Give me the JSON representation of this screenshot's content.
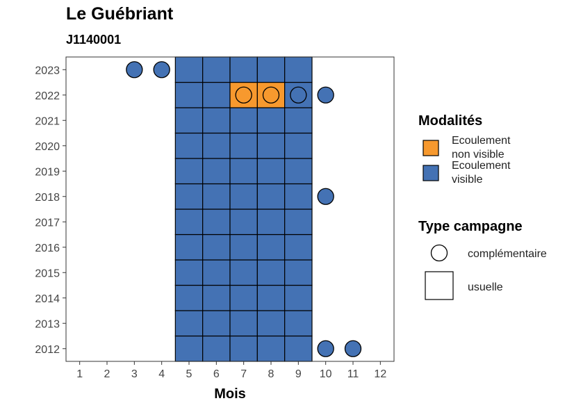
{
  "chart_data": {
    "type": "heatmap",
    "title": "Le Guébriant",
    "subtitle": "J1140001",
    "xlabel": "Mois",
    "ylabel": "",
    "x_ticks": [
      1,
      2,
      3,
      4,
      5,
      6,
      7,
      8,
      9,
      10,
      11,
      12
    ],
    "y_ticks": [
      2012,
      2013,
      2014,
      2015,
      2016,
      2017,
      2018,
      2019,
      2020,
      2021,
      2022,
      2023
    ],
    "xlim": [
      0.5,
      12.5
    ],
    "ylim": [
      2011.5,
      2023.5
    ],
    "colors": {
      "Ecoulement non visible": "#F7992E",
      "Ecoulement visible": "#4472B4"
    },
    "usuelle": {
      "visible_months": [
        5,
        6,
        7,
        8,
        9
      ],
      "years": [
        2012,
        2013,
        2014,
        2015,
        2016,
        2017,
        2018,
        2019,
        2020,
        2021,
        2022,
        2023
      ],
      "exceptions": [
        {
          "year": 2022,
          "month": 7,
          "modalite": "Ecoulement non visible"
        },
        {
          "year": 2022,
          "month": 8,
          "modalite": "Ecoulement non visible"
        }
      ]
    },
    "complementaire": [
      {
        "year": 2023,
        "month": 3,
        "modalite": "Ecoulement visible"
      },
      {
        "year": 2023,
        "month": 4,
        "modalite": "Ecoulement visible"
      },
      {
        "year": 2022,
        "month": 7,
        "modalite": "Ecoulement non visible"
      },
      {
        "year": 2022,
        "month": 8,
        "modalite": "Ecoulement non visible"
      },
      {
        "year": 2022,
        "month": 9,
        "modalite": "Ecoulement visible"
      },
      {
        "year": 2022,
        "month": 10,
        "modalite": "Ecoulement visible"
      },
      {
        "year": 2018,
        "month": 10,
        "modalite": "Ecoulement visible"
      },
      {
        "year": 2012,
        "month": 10,
        "modalite": "Ecoulement visible"
      },
      {
        "year": 2012,
        "month": 11,
        "modalite": "Ecoulement visible"
      }
    ],
    "legend": {
      "placement": "right",
      "modalites_title": "Modalités",
      "modalites": [
        {
          "label_line1": "Ecoulement",
          "label_line2": "non visible",
          "color": "#F7992E"
        },
        {
          "label_line1": "Ecoulement",
          "label_line2": "visible",
          "color": "#4472B4"
        }
      ],
      "type_title": "Type campagne",
      "types": [
        {
          "label": "complémentaire",
          "shape": "circle"
        },
        {
          "label": "usuelle",
          "shape": "square"
        }
      ]
    }
  }
}
